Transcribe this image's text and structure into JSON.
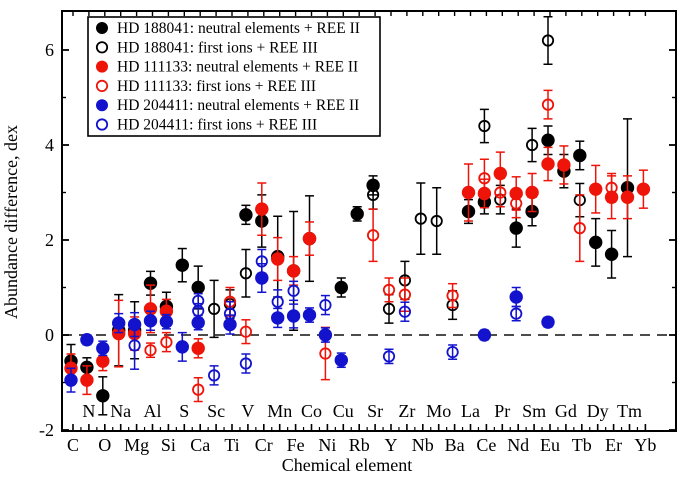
{
  "figure": {
    "background": "#ffffff",
    "frame_color": "#000000"
  },
  "chart_data": {
    "type": "scatter",
    "title": "",
    "xlabel": "Chemical element",
    "ylabel": "Abundance difference, dex",
    "ylim": [
      -2.02,
      6.82
    ],
    "yticks_major": [
      -2,
      0,
      2,
      4,
      6
    ],
    "yticks_minor": [
      -1,
      1,
      3,
      5
    ],
    "zero_line": 0,
    "grid": false,
    "legend_position": "top-left",
    "elements": [
      "C",
      "N",
      "O",
      "Na",
      "Mg",
      "Al",
      "Si",
      "S",
      "Ca",
      "Sc",
      "Ti",
      "V",
      "Cr",
      "Mn",
      "Fe",
      "Co",
      "Ni",
      "Cu",
      "Rb",
      "Sr",
      "Y",
      "Zr",
      "Nb",
      "Mo",
      "Ba",
      "La",
      "Ce",
      "Pr",
      "Nd",
      "Sm",
      "Eu",
      "Gd",
      "Tb",
      "Dy",
      "Er",
      "Tm",
      "Yb"
    ],
    "series": [
      {
        "id": "hd188041-neutral",
        "label": "HD 188041: neutral elements + REE II",
        "color": "#000000",
        "marker": "filled-circle",
        "points": [
          [
            "C",
            -0.55,
            0.35
          ],
          [
            "N",
            -0.68,
            0.2
          ],
          [
            "O",
            -1.28,
            0.4
          ],
          [
            "Na",
            0.1,
            0.75
          ],
          [
            "Mg",
            0.1,
            0.6
          ],
          [
            "Al",
            1.09,
            0.25
          ],
          [
            "Si",
            0.6,
            0.3
          ],
          [
            "S",
            1.47,
            0.35
          ],
          [
            "Ca",
            1.0,
            0.45
          ],
          [
            "V",
            2.53,
            0.2
          ],
          [
            "Cr",
            2.4,
            0.55
          ],
          [
            "Mn",
            1.65,
            0.85
          ],
          [
            "Fe",
            1.35,
            1.25
          ],
          [
            "Co",
            2.03,
            0.9
          ],
          [
            "Cu",
            1.0,
            0.2
          ],
          [
            "Rb",
            2.55,
            0.15
          ],
          [
            "Sr",
            3.15,
            0.2
          ],
          [
            "La",
            2.6,
            0.25
          ],
          [
            "Ce",
            2.8,
            0.25
          ],
          [
            "Nd",
            2.25,
            0.4
          ],
          [
            "Sm",
            2.6,
            0.3
          ],
          [
            "Eu",
            4.1,
            0.3
          ],
          [
            "Gd",
            3.45,
            0.35
          ],
          [
            "Tb",
            3.78,
            0.3
          ],
          [
            "Dy",
            1.95,
            0.5
          ],
          [
            "Er",
            1.7,
            0.5
          ],
          [
            "Tm",
            3.1,
            1.45
          ]
        ]
      },
      {
        "id": "hd188041-ions",
        "label": "HD 188041: first ions + REE III",
        "color": "#000000",
        "marker": "open-circle",
        "points": [
          [
            "Sc",
            0.55,
            0.6
          ],
          [
            "Ti",
            0.65,
            0.3
          ],
          [
            "V",
            1.3,
            0.5
          ],
          [
            "Sr",
            2.95,
            0.3
          ],
          [
            "Y",
            0.55,
            0.3
          ],
          [
            "Zr",
            1.15,
            0.4
          ],
          [
            "Nb",
            2.45,
            0.75
          ],
          [
            "Mo",
            2.4,
            0.7
          ],
          [
            "Ba",
            0.63,
            0.3
          ],
          [
            "Ce",
            4.4,
            0.35
          ],
          [
            "Pr",
            2.85,
            0.3
          ],
          [
            "Sm",
            4.0,
            0.35
          ],
          [
            "Eu",
            6.2,
            0.5
          ],
          [
            "Tb",
            2.84,
            0.35
          ]
        ]
      },
      {
        "id": "hd111133-neutral",
        "label": "HD 111133: neutral elements + REE II",
        "color": "#ee1409",
        "marker": "filled-circle",
        "points": [
          [
            "C",
            -0.7,
            0.3
          ],
          [
            "N",
            -0.95,
            0.3
          ],
          [
            "O",
            -0.55,
            0.2
          ],
          [
            "Na",
            0.03,
            0.7
          ],
          [
            "Mg",
            0.03,
            0.35
          ],
          [
            "Al",
            0.55,
            0.5
          ],
          [
            "Si",
            0.5,
            0.25
          ],
          [
            "Ca",
            -0.28,
            0.2
          ],
          [
            "Cr",
            2.65,
            0.55
          ],
          [
            "Mn",
            1.6,
            0.45
          ],
          [
            "Fe",
            1.35,
            0.3
          ],
          [
            "Co",
            2.03,
            0.35
          ],
          [
            "La",
            3.0,
            0.6
          ],
          [
            "Ce",
            2.98,
            0.3
          ],
          [
            "Pr",
            3.4,
            0.45
          ],
          [
            "Nd",
            2.98,
            0.35
          ],
          [
            "Sm",
            3.0,
            0.4
          ],
          [
            "Eu",
            3.6,
            0.35
          ],
          [
            "Gd",
            3.58,
            0.4
          ],
          [
            "Dy",
            3.07,
            0.5
          ],
          [
            "Er",
            2.9,
            0.45
          ],
          [
            "Tm",
            2.9,
            0.45
          ],
          [
            "Yb",
            3.07,
            0.4
          ]
        ]
      },
      {
        "id": "hd111133-ions",
        "label": "HD 111133: first ions + REE III",
        "color": "#ee1409",
        "marker": "open-circle",
        "points": [
          [
            "Al",
            -0.32,
            0.15
          ],
          [
            "Si",
            -0.15,
            0.2
          ],
          [
            "Ca",
            -1.15,
            0.25
          ],
          [
            "Ti",
            0.7,
            0.3
          ],
          [
            "V",
            0.07,
            0.25
          ],
          [
            "Ni",
            -0.39,
            0.55
          ],
          [
            "Sr",
            2.1,
            0.55
          ],
          [
            "Y",
            0.95,
            0.25
          ],
          [
            "Zr",
            0.85,
            0.35
          ],
          [
            "Ba",
            0.83,
            0.25
          ],
          [
            "Ce",
            3.3,
            0.4
          ],
          [
            "Pr",
            3.0,
            0.3
          ],
          [
            "Nd",
            2.77,
            0.3
          ],
          [
            "Eu",
            4.85,
            0.3
          ],
          [
            "Tb",
            2.25,
            0.7
          ],
          [
            "Er",
            3.1,
            0.3
          ]
        ]
      },
      {
        "id": "hd204411-neutral",
        "label": "HD 204411: neutral elements + REE II",
        "color": "#1313cd",
        "marker": "filled-circle",
        "points": [
          [
            "C",
            -0.95,
            0.25
          ],
          [
            "N",
            -0.1,
            0.1
          ],
          [
            "O",
            -0.28,
            0.15
          ],
          [
            "Na",
            0.25,
            0.2
          ],
          [
            "Mg",
            0.22,
            0.25
          ],
          [
            "Al",
            0.3,
            0.2
          ],
          [
            "Si",
            0.28,
            0.15
          ],
          [
            "S",
            -0.25,
            0.3
          ],
          [
            "Ca",
            0.26,
            0.15
          ],
          [
            "Ti",
            0.22,
            0.2
          ],
          [
            "Cr",
            1.2,
            0.3
          ],
          [
            "Mn",
            0.36,
            0.2
          ],
          [
            "Fe",
            0.4,
            0.25
          ],
          [
            "Co",
            0.42,
            0.15
          ],
          [
            "Ni",
            0.0,
            0.15
          ],
          [
            "Cu",
            -0.53,
            0.15
          ],
          [
            "Ce",
            0.0,
            0.1
          ],
          [
            "Nd",
            0.8,
            0.2
          ],
          [
            "Eu",
            0.27,
            0.1
          ]
        ]
      },
      {
        "id": "hd204411-ions",
        "label": "HD 204411: first ions + REE III",
        "color": "#1313cd",
        "marker": "open-circle",
        "points": [
          [
            "Mg",
            -0.22,
            0.5
          ],
          [
            "Ca",
            0.72,
            0.15
          ],
          [
            "Ca",
            0.51,
            0.15
          ],
          [
            "Sc",
            -0.85,
            0.2
          ],
          [
            "Ti",
            0.45,
            0.25
          ],
          [
            "V",
            -0.6,
            0.2
          ],
          [
            "Cr",
            1.55,
            0.25
          ],
          [
            "Mn",
            0.7,
            0.25
          ],
          [
            "Fe",
            0.93,
            0.2
          ],
          [
            "Ni",
            0.63,
            0.2
          ],
          [
            "Y",
            -0.45,
            0.15
          ],
          [
            "Zr",
            0.49,
            0.2
          ],
          [
            "Ba",
            -0.36,
            0.15
          ],
          [
            "Nd",
            0.45,
            0.15
          ]
        ]
      }
    ]
  }
}
